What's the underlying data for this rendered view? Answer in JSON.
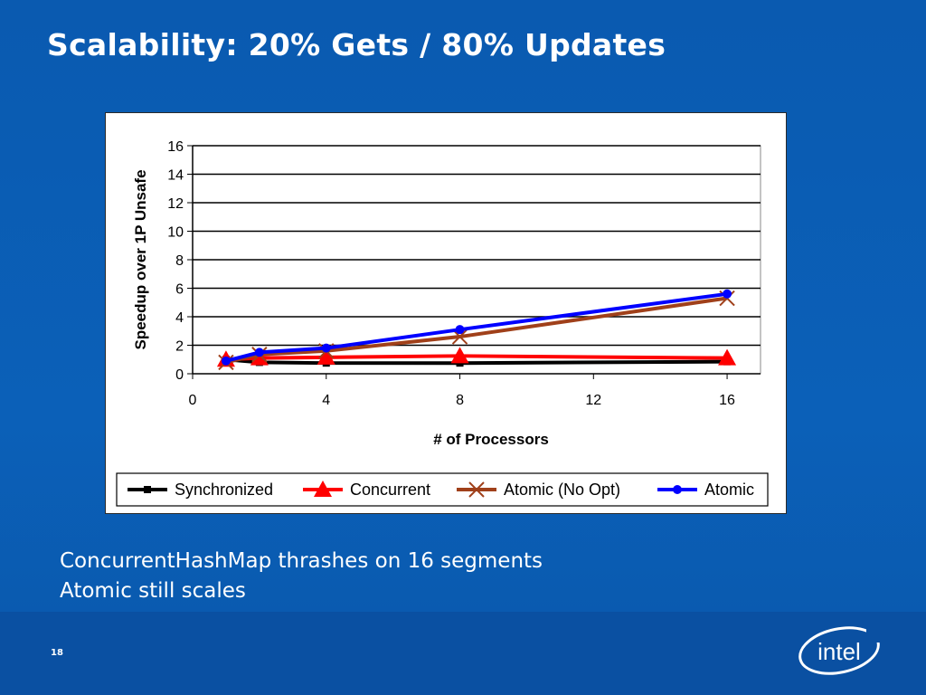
{
  "slide": {
    "title": "Scalability: 20% Gets / 80% Updates",
    "bullets": [
      "ConcurrentHashMap thrashes on 16 segments",
      "Atomic still scales"
    ],
    "page_number": "18",
    "logo_text": "intel",
    "colors": {
      "background": "#0b5cb3",
      "text": "#ffffff"
    }
  },
  "chart_data": {
    "type": "line",
    "title": "",
    "xlabel": "# of Processors",
    "ylabel": "Speedup over 1P Unsafe",
    "xlim": [
      0,
      17
    ],
    "ylim": [
      0,
      16
    ],
    "x_ticks": [
      0,
      4,
      8,
      12,
      16
    ],
    "y_ticks": [
      0,
      2,
      4,
      6,
      8,
      10,
      12,
      14,
      16
    ],
    "grid": "horizontal",
    "legend_position": "bottom",
    "series": [
      {
        "name": "Synchronized",
        "color": "#000000",
        "marker": "square",
        "x": [
          1,
          2,
          4,
          8,
          16
        ],
        "y": [
          1.0,
          0.8,
          0.75,
          0.75,
          0.85
        ]
      },
      {
        "name": "Concurrent",
        "color": "#ff0000",
        "marker": "triangle",
        "x": [
          1,
          2,
          4,
          8,
          16
        ],
        "y": [
          1.0,
          1.1,
          1.15,
          1.25,
          1.1
        ]
      },
      {
        "name": "Atomic (No Opt)",
        "color": "#a0401a",
        "marker": "x",
        "x": [
          1,
          2,
          4,
          8,
          16
        ],
        "y": [
          0.8,
          1.35,
          1.6,
          2.6,
          5.3
        ]
      },
      {
        "name": "Atomic",
        "color": "#0000ff",
        "marker": "circle",
        "x": [
          1,
          2,
          4,
          8,
          16
        ],
        "y": [
          0.9,
          1.5,
          1.8,
          3.1,
          5.6
        ]
      }
    ]
  }
}
